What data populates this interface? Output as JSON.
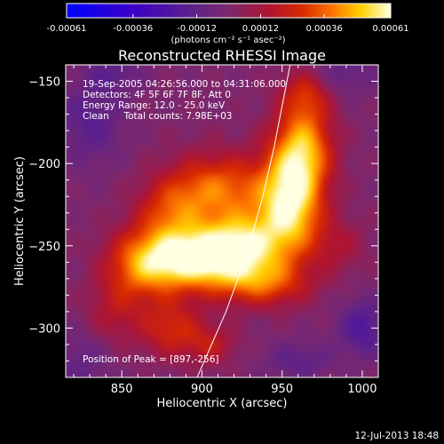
{
  "chart_data": {
    "type": "heatmap",
    "title": "Reconstructed RHESSI Image",
    "xlabel": "Heliocentric X (arcsec)",
    "ylabel": "Heliocentric Y (arcsec)",
    "xlim": [
      815,
      1010
    ],
    "ylim": [
      -330,
      -140
    ],
    "x_ticks": [
      850,
      900,
      950,
      1000
    ],
    "x_tick_labels": [
      "850",
      "900",
      "950",
      "1000"
    ],
    "y_ticks": [
      -150,
      -200,
      -250,
      -300
    ],
    "y_tick_labels": [
      "−150",
      "−200",
      "−250",
      "−300"
    ],
    "colorbar": {
      "range": [
        -0.00061,
        0.00061
      ],
      "tick_values": [
        -0.00061,
        -0.00036,
        -0.00012,
        0.00012,
        0.00036,
        0.00061
      ],
      "tick_labels": [
        "-0.00061",
        "-0.00036",
        "-0.00012",
        "0.00012",
        "0.00036",
        "0.00061"
      ],
      "unit_label": "(photons cm⁻² s⁻¹ asec⁻²)",
      "colormap": "blue-purple-red-yellow-white"
    },
    "annotations": [
      "19-Sep-2005 04:26:56.000 to 04:31:06.000",
      "Detectors: 4F 5F 6F 7F 8F, Att 0",
      "Energy Range: 12.0 - 25.0 keV",
      "Clean     Total counts: 7.98E+03"
    ],
    "peak_text": "Position of Peak = [897,-256]",
    "peak": {
      "x": 897,
      "y": -256
    },
    "limb_curve": [
      [
        897,
        -330
      ],
      [
        915,
        -290
      ],
      [
        928,
        -255
      ],
      [
        938,
        -220
      ],
      [
        945,
        -190
      ],
      [
        951,
        -160
      ],
      [
        955,
        -140
      ]
    ],
    "emission_components": [
      {
        "x": 893,
        "y": -258,
        "sx": 22,
        "sy": 13,
        "amp": 1.0
      },
      {
        "x": 925,
        "y": -250,
        "sx": 18,
        "sy": 14,
        "amp": 0.8
      },
      {
        "x": 955,
        "y": -225,
        "sx": 14,
        "sy": 22,
        "amp": 0.95
      },
      {
        "x": 963,
        "y": -190,
        "sx": 13,
        "sy": 18,
        "amp": 0.72
      },
      {
        "x": 965,
        "y": -157,
        "sx": 11,
        "sy": 11,
        "amp": 0.4
      },
      {
        "x": 910,
        "y": -215,
        "sx": 22,
        "sy": 15,
        "amp": 0.62
      },
      {
        "x": 880,
        "y": -230,
        "sx": 15,
        "sy": 14,
        "amp": 0.42
      },
      {
        "x": 862,
        "y": -262,
        "sx": 16,
        "sy": 15,
        "amp": 0.52
      },
      {
        "x": 938,
        "y": -273,
        "sx": 20,
        "sy": 10,
        "amp": 0.5
      },
      {
        "x": 880,
        "y": -300,
        "sx": 14,
        "sy": 12,
        "amp": 0.42
      },
      {
        "x": 905,
        "y": -310,
        "sx": 12,
        "sy": 9,
        "amp": 0.3
      },
      {
        "x": 845,
        "y": -290,
        "sx": 12,
        "sy": 14,
        "amp": 0.25
      },
      {
        "x": 985,
        "y": -250,
        "sx": 12,
        "sy": 12,
        "amp": 0.22
      },
      {
        "x": 1000,
        "y": -300,
        "sx": 10,
        "sy": 12,
        "amp": -0.35
      },
      {
        "x": 960,
        "y": -320,
        "sx": 14,
        "sy": 8,
        "amp": -0.22
      },
      {
        "x": 830,
        "y": -175,
        "sx": 14,
        "sy": 18,
        "amp": -0.25
      },
      {
        "x": 845,
        "y": -145,
        "sx": 12,
        "sy": 8,
        "amp": -0.2
      },
      {
        "x": 985,
        "y": -145,
        "sx": 16,
        "sy": 10,
        "amp": -0.2
      },
      {
        "x": 825,
        "y": -320,
        "sx": 12,
        "sy": 12,
        "amp": -0.18
      }
    ]
  },
  "footer": {
    "timestamp": "12-Jul-2013 18:48"
  },
  "colors": {
    "background": "#000000",
    "foreground": "#ffffff",
    "limb_line": "#ffffff"
  }
}
